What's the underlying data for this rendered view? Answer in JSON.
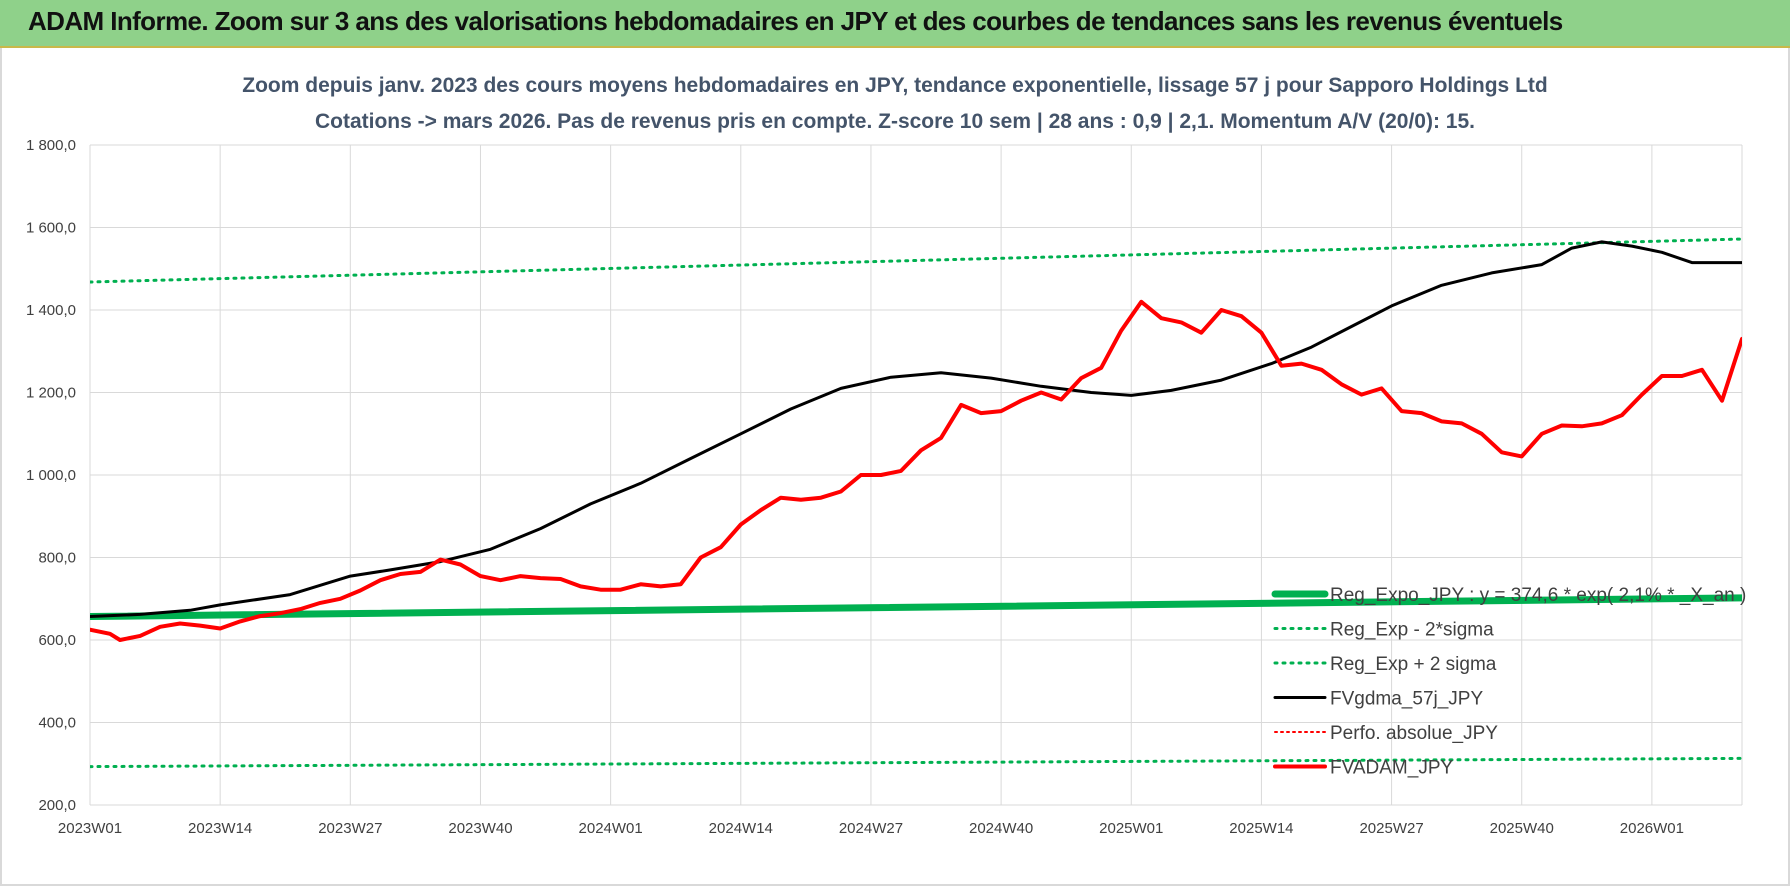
{
  "banner": {
    "title": "ADAM Informe. Zoom sur 3 ans des valorisations hebdomadaires en JPY et des courbes de tendances sans les revenus éventuels",
    "bg_color": "#8fd18a"
  },
  "chart_data": {
    "type": "line",
    "title": "Zoom depuis janv. 2023 des cours moyens hebdomadaires en JPY, tendance exponentielle, lissage 57 j pour Sapporo Holdings Ltd",
    "subtitle": "Cotations -> mars 2026. Pas de revenus pris en compte. Z-score 10 sem | 28 ans : 0,9 | 2,1. Momentum A/V (20/0): 15.",
    "xlabel": "",
    "ylabel": "",
    "x_ticks": [
      "2023W01",
      "2023W14",
      "2023W27",
      "2023W40",
      "2024W01",
      "2024W14",
      "2024W27",
      "2024W40",
      "2025W01",
      "2025W14",
      "2025W27",
      "2025W40",
      "2026W01"
    ],
    "y_ticks": [
      "200,0",
      "400,0",
      "600,0",
      "800,0",
      "1 000,0",
      "1 200,0",
      "1 400,0",
      "1 600,0",
      "1 800,0"
    ],
    "ylim": [
      200,
      1800
    ],
    "xlim": [
      0,
      165
    ],
    "grid": true,
    "legend_position": "bottom-right",
    "series": [
      {
        "name": "Reg_Expo_JPY : y = 374,6 * exp( 2,1% * _X_an )",
        "color": "#00b050",
        "style": "solid",
        "width": 7,
        "points": [
          [
            0,
            657
          ],
          [
            165,
            702
          ]
        ]
      },
      {
        "name": "Reg_Exp - 2*sigma",
        "color": "#00b050",
        "style": "dotted",
        "width": 3,
        "points": [
          [
            0,
            293
          ],
          [
            165,
            313
          ]
        ]
      },
      {
        "name": "Reg_Exp + 2 sigma",
        "color": "#00b050",
        "style": "dotted",
        "width": 3,
        "points": [
          [
            0,
            1468
          ],
          [
            165,
            1572
          ]
        ]
      },
      {
        "name": "FVgdma_57j_JPY",
        "color": "#000000",
        "style": "solid",
        "width": 3,
        "points": [
          [
            0,
            657
          ],
          [
            5,
            662
          ],
          [
            10,
            672
          ],
          [
            13,
            685
          ],
          [
            20,
            710
          ],
          [
            26,
            755
          ],
          [
            30,
            770
          ],
          [
            35,
            790
          ],
          [
            40,
            820
          ],
          [
            45,
            870
          ],
          [
            50,
            930
          ],
          [
            55,
            980
          ],
          [
            60,
            1040
          ],
          [
            65,
            1100
          ],
          [
            70,
            1160
          ],
          [
            75,
            1210
          ],
          [
            80,
            1237
          ],
          [
            85,
            1248
          ],
          [
            90,
            1235
          ],
          [
            95,
            1215
          ],
          [
            100,
            1200
          ],
          [
            104,
            1193
          ],
          [
            108,
            1205
          ],
          [
            113,
            1230
          ],
          [
            118,
            1270
          ],
          [
            122,
            1310
          ],
          [
            126,
            1360
          ],
          [
            130,
            1410
          ],
          [
            135,
            1460
          ],
          [
            140,
            1490
          ],
          [
            145,
            1510
          ],
          [
            148,
            1550
          ],
          [
            151,
            1565
          ],
          [
            154,
            1555
          ],
          [
            157,
            1540
          ],
          [
            160,
            1515
          ],
          [
            165,
            1515
          ]
        ]
      },
      {
        "name": "Perfo. absolue_JPY",
        "color": "#ff0000",
        "style": "dotted",
        "width": 2,
        "points": []
      },
      {
        "name": "FVADAM_JPY",
        "color": "#ff0000",
        "style": "solid",
        "width": 4,
        "points": [
          [
            0,
            625
          ],
          [
            2,
            615
          ],
          [
            3,
            600
          ],
          [
            5,
            610
          ],
          [
            7,
            632
          ],
          [
            9,
            640
          ],
          [
            11,
            635
          ],
          [
            13,
            628
          ],
          [
            15,
            645
          ],
          [
            17,
            658
          ],
          [
            19,
            665
          ],
          [
            21,
            675
          ],
          [
            23,
            690
          ],
          [
            25,
            700
          ],
          [
            27,
            720
          ],
          [
            29,
            745
          ],
          [
            31,
            760
          ],
          [
            33,
            765
          ],
          [
            35,
            795
          ],
          [
            37,
            783
          ],
          [
            39,
            755
          ],
          [
            41,
            745
          ],
          [
            43,
            755
          ],
          [
            45,
            750
          ],
          [
            47,
            748
          ],
          [
            49,
            730
          ],
          [
            51,
            722
          ],
          [
            53,
            722
          ],
          [
            55,
            735
          ],
          [
            57,
            730
          ],
          [
            59,
            735
          ],
          [
            61,
            800
          ],
          [
            63,
            825
          ],
          [
            65,
            880
          ],
          [
            67,
            915
          ],
          [
            69,
            945
          ],
          [
            71,
            940
          ],
          [
            73,
            945
          ],
          [
            75,
            960
          ],
          [
            77,
            1000
          ],
          [
            79,
            1000
          ],
          [
            81,
            1010
          ],
          [
            83,
            1060
          ],
          [
            85,
            1090
          ],
          [
            87,
            1170
          ],
          [
            89,
            1150
          ],
          [
            91,
            1155
          ],
          [
            93,
            1180
          ],
          [
            95,
            1200
          ],
          [
            97,
            1183
          ],
          [
            99,
            1235
          ],
          [
            101,
            1260
          ],
          [
            103,
            1350
          ],
          [
            105,
            1420
          ],
          [
            107,
            1380
          ],
          [
            109,
            1370
          ],
          [
            111,
            1345
          ],
          [
            113,
            1400
          ],
          [
            115,
            1385
          ],
          [
            117,
            1345
          ],
          [
            119,
            1265
          ],
          [
            121,
            1270
          ],
          [
            123,
            1255
          ],
          [
            125,
            1220
          ],
          [
            127,
            1195
          ],
          [
            129,
            1210
          ],
          [
            131,
            1155
          ],
          [
            133,
            1150
          ],
          [
            135,
            1130
          ],
          [
            137,
            1125
          ],
          [
            139,
            1100
          ],
          [
            141,
            1055
          ],
          [
            143,
            1045
          ],
          [
            145,
            1100
          ],
          [
            147,
            1120
          ],
          [
            149,
            1118
          ],
          [
            151,
            1125
          ],
          [
            153,
            1145
          ],
          [
            155,
            1195
          ],
          [
            157,
            1240
          ],
          [
            159,
            1240
          ],
          [
            161,
            1255
          ],
          [
            163,
            1180
          ],
          [
            165,
            1330
          ]
        ]
      }
    ]
  }
}
